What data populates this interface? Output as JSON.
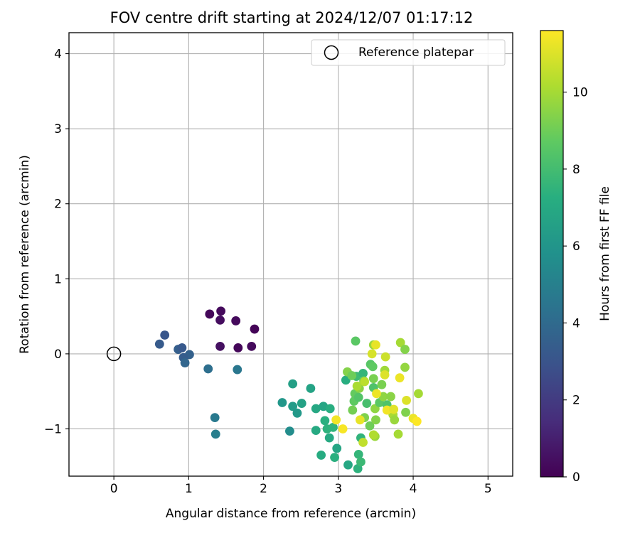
{
  "chart_data": {
    "type": "scatter",
    "title": "FOV centre drift starting at 2024/12/07 01:17:12",
    "xlabel": "Angular distance from reference (arcmin)",
    "ylabel": "Rotation from reference (arcmin)",
    "xlim": [
      -0.6,
      5.33
    ],
    "ylim": [
      -1.63,
      4.28
    ],
    "xticks": [
      0,
      1,
      2,
      3,
      4,
      5
    ],
    "yticks": [
      -1,
      0,
      1,
      2,
      3,
      4
    ],
    "grid": true,
    "legend": {
      "location": "top-right",
      "entries": [
        "Reference platepar"
      ]
    },
    "reference_point": {
      "x": 0,
      "y": 0
    },
    "colorbar": {
      "label": "Hours from first FF file",
      "colormap": "viridis",
      "range": [
        0,
        11.6
      ],
      "ticks": [
        0,
        2,
        4,
        6,
        8,
        10
      ]
    },
    "points": [
      {
        "x": 1.28,
        "y": 0.53,
        "c": 0.2
      },
      {
        "x": 1.43,
        "y": 0.57,
        "c": 0.3
      },
      {
        "x": 1.42,
        "y": 0.45,
        "c": 0.4
      },
      {
        "x": 1.63,
        "y": 0.44,
        "c": 0.3
      },
      {
        "x": 1.88,
        "y": 0.33,
        "c": 0.1
      },
      {
        "x": 1.42,
        "y": 0.1,
        "c": 0.5
      },
      {
        "x": 1.66,
        "y": 0.08,
        "c": 0.2
      },
      {
        "x": 1.84,
        "y": 0.1,
        "c": 0.3
      },
      {
        "x": 0.68,
        "y": 0.25,
        "c": 3.1
      },
      {
        "x": 0.61,
        "y": 0.13,
        "c": 3.3
      },
      {
        "x": 0.86,
        "y": 0.06,
        "c": 3.5
      },
      {
        "x": 0.91,
        "y": 0.08,
        "c": 3.2
      },
      {
        "x": 1.01,
        "y": -0.01,
        "c": 3.6
      },
      {
        "x": 0.93,
        "y": -0.05,
        "c": 3.4
      },
      {
        "x": 0.95,
        "y": -0.12,
        "c": 3.8
      },
      {
        "x": 1.26,
        "y": -0.2,
        "c": 4.2
      },
      {
        "x": 1.65,
        "y": -0.21,
        "c": 4.6
      },
      {
        "x": 1.35,
        "y": -0.85,
        "c": 4.7
      },
      {
        "x": 1.36,
        "y": -1.07,
        "c": 4.9
      },
      {
        "x": 2.35,
        "y": -1.03,
        "c": 5.6
      },
      {
        "x": 2.25,
        "y": -0.65,
        "c": 6.1
      },
      {
        "x": 2.39,
        "y": -0.4,
        "c": 6.5
      },
      {
        "x": 2.39,
        "y": -0.7,
        "c": 6.3
      },
      {
        "x": 2.45,
        "y": -0.79,
        "c": 6.2
      },
      {
        "x": 2.51,
        "y": -0.66,
        "c": 6.6
      },
      {
        "x": 2.63,
        "y": -0.46,
        "c": 6.7
      },
      {
        "x": 2.7,
        "y": -0.73,
        "c": 6.9
      },
      {
        "x": 2.7,
        "y": -1.02,
        "c": 7.0
      },
      {
        "x": 2.77,
        "y": -1.35,
        "c": 7.1
      },
      {
        "x": 2.8,
        "y": -0.7,
        "c": 6.8
      },
      {
        "x": 2.82,
        "y": -0.89,
        "c": 7.3
      },
      {
        "x": 2.85,
        "y": -1.0,
        "c": 7.4
      },
      {
        "x": 2.89,
        "y": -0.73,
        "c": 7.2
      },
      {
        "x": 2.88,
        "y": -1.12,
        "c": 7.0
      },
      {
        "x": 2.93,
        "y": -0.98,
        "c": 7.5
      },
      {
        "x": 2.95,
        "y": -1.38,
        "c": 7.3
      },
      {
        "x": 2.98,
        "y": -1.26,
        "c": 6.8
      },
      {
        "x": 3.13,
        "y": -1.48,
        "c": 6.9
      },
      {
        "x": 3.26,
        "y": -1.53,
        "c": 7.4
      },
      {
        "x": 3.27,
        "y": -1.34,
        "c": 7.6
      },
      {
        "x": 3.3,
        "y": -1.44,
        "c": 7.8
      },
      {
        "x": 3.3,
        "y": -1.12,
        "c": 7.5
      },
      {
        "x": 3.1,
        "y": -0.35,
        "c": 7.2
      },
      {
        "x": 3.24,
        "y": -0.3,
        "c": 7.9
      },
      {
        "x": 3.33,
        "y": -0.26,
        "c": 7.6
      },
      {
        "x": 3.23,
        "y": 0.17,
        "c": 8.6
      },
      {
        "x": 3.12,
        "y": -0.24,
        "c": 9.4
      },
      {
        "x": 3.18,
        "y": -0.29,
        "c": 9.0
      },
      {
        "x": 3.22,
        "y": -0.53,
        "c": 8.8
      },
      {
        "x": 3.19,
        "y": -0.75,
        "c": 9.1
      },
      {
        "x": 3.21,
        "y": -0.63,
        "c": 8.7
      },
      {
        "x": 3.28,
        "y": -0.46,
        "c": 9.5
      },
      {
        "x": 3.27,
        "y": -0.58,
        "c": 8.4
      },
      {
        "x": 3.34,
        "y": -0.36,
        "c": 8.9
      },
      {
        "x": 3.35,
        "y": -0.85,
        "c": 9.3
      },
      {
        "x": 3.38,
        "y": -0.66,
        "c": 8.1
      },
      {
        "x": 3.42,
        "y": -0.96,
        "c": 9.0
      },
      {
        "x": 3.43,
        "y": -0.14,
        "c": 8.5
      },
      {
        "x": 3.46,
        "y": -0.17,
        "c": 8.7
      },
      {
        "x": 3.47,
        "y": -0.33,
        "c": 9.2
      },
      {
        "x": 3.47,
        "y": -0.45,
        "c": 8.3
      },
      {
        "x": 3.49,
        "y": -0.73,
        "c": 9.6
      },
      {
        "x": 3.5,
        "y": -0.88,
        "c": 9.4
      },
      {
        "x": 3.49,
        "y": -1.1,
        "c": 9.8
      },
      {
        "x": 3.47,
        "y": -1.08,
        "c": 10.2
      },
      {
        "x": 3.33,
        "y": -1.18,
        "c": 10.5
      },
      {
        "x": 3.55,
        "y": -0.65,
        "c": 8.6
      },
      {
        "x": 3.58,
        "y": -0.41,
        "c": 9.2
      },
      {
        "x": 3.6,
        "y": -0.57,
        "c": 9.6
      },
      {
        "x": 3.62,
        "y": -0.22,
        "c": 9.9
      },
      {
        "x": 3.65,
        "y": -0.68,
        "c": 8.3
      },
      {
        "x": 3.7,
        "y": -0.57,
        "c": 9.5
      },
      {
        "x": 3.73,
        "y": -0.81,
        "c": 10.1
      },
      {
        "x": 3.75,
        "y": -0.88,
        "c": 9.8
      },
      {
        "x": 3.8,
        "y": -1.07,
        "c": 10.0
      },
      {
        "x": 3.83,
        "y": 0.15,
        "c": 10.0
      },
      {
        "x": 3.89,
        "y": 0.06,
        "c": 9.4
      },
      {
        "x": 3.89,
        "y": -0.18,
        "c": 9.7
      },
      {
        "x": 3.9,
        "y": -0.78,
        "c": 9.3
      },
      {
        "x": 4.07,
        "y": -0.53,
        "c": 10.0
      },
      {
        "x": 3.45,
        "y": 0.0,
        "c": 10.9
      },
      {
        "x": 3.47,
        "y": 0.12,
        "c": 9.8
      },
      {
        "x": 3.5,
        "y": 0.12,
        "c": 11.2
      },
      {
        "x": 3.63,
        "y": -0.04,
        "c": 10.7
      },
      {
        "x": 3.82,
        "y": -0.32,
        "c": 11.3
      },
      {
        "x": 3.62,
        "y": -0.28,
        "c": 11.0
      },
      {
        "x": 3.51,
        "y": -0.53,
        "c": 11.3
      },
      {
        "x": 3.91,
        "y": -0.62,
        "c": 11.0
      },
      {
        "x": 3.65,
        "y": -0.75,
        "c": 11.4
      },
      {
        "x": 3.74,
        "y": -0.74,
        "c": 11.1
      },
      {
        "x": 3.29,
        "y": -0.88,
        "c": 11.2
      },
      {
        "x": 2.97,
        "y": -0.88,
        "c": 11.4
      },
      {
        "x": 3.06,
        "y": -1.0,
        "c": 11.5
      },
      {
        "x": 4.0,
        "y": -0.86,
        "c": 11.3
      },
      {
        "x": 4.05,
        "y": -0.9,
        "c": 11.6
      },
      {
        "x": 3.35,
        "y": -0.37,
        "c": 10.4
      },
      {
        "x": 3.25,
        "y": -0.43,
        "c": 10.1
      }
    ]
  }
}
